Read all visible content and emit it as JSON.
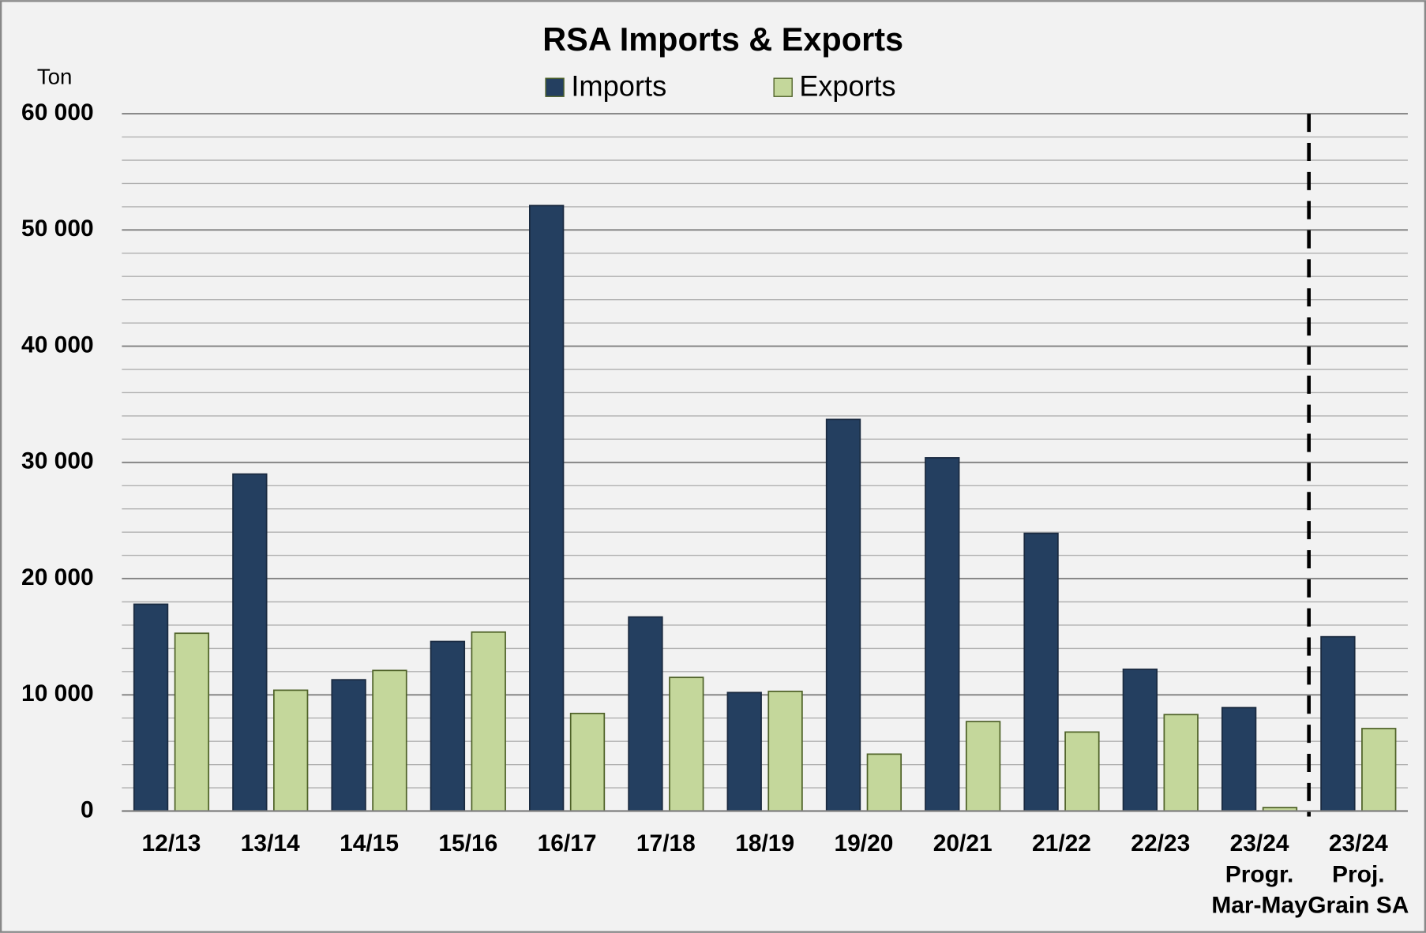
{
  "chart_data": {
    "type": "bar",
    "title": "RSA Imports & Exports",
    "y_label": "Ton",
    "categories": [
      "12/13",
      "13/14",
      "14/15",
      "15/16",
      "16/17",
      "17/18",
      "18/19",
      "19/20",
      "20/21",
      "21/22",
      "22/23",
      "23/24\nProgr.\nMar-May",
      "23/24\nProj.\nGrain SA"
    ],
    "series": [
      {
        "name": "Imports",
        "color": "#243f60",
        "values": [
          17800,
          29000,
          11300,
          14600,
          52100,
          16700,
          10200,
          33700,
          30400,
          23900,
          12200,
          8900,
          15000
        ]
      },
      {
        "name": "Exports",
        "color": "#c4d79b",
        "values": [
          15300,
          10400,
          12100,
          15400,
          8400,
          11500,
          10300,
          4900,
          7700,
          6800,
          8300,
          300,
          7100
        ]
      }
    ],
    "ylim": [
      0,
      60000
    ],
    "yticks": [
      {
        "value": 0,
        "label": "0"
      },
      {
        "value": 10000,
        "label": "10  000"
      },
      {
        "value": 20000,
        "label": "20  000"
      },
      {
        "value": 30000,
        "label": "30  000"
      },
      {
        "value": 40000,
        "label": "40  000"
      },
      {
        "value": 50000,
        "label": "50  000"
      },
      {
        "value": 60000,
        "label": "60  000"
      }
    ],
    "minor_yticks": [
      2000,
      4000,
      6000,
      8000,
      12000,
      14000,
      16000,
      18000,
      22000,
      24000,
      26000,
      28000,
      32000,
      34000,
      36000,
      38000,
      42000,
      44000,
      46000,
      48000,
      52000,
      54000,
      56000,
      58000
    ],
    "grid": true,
    "legend": "top"
  }
}
